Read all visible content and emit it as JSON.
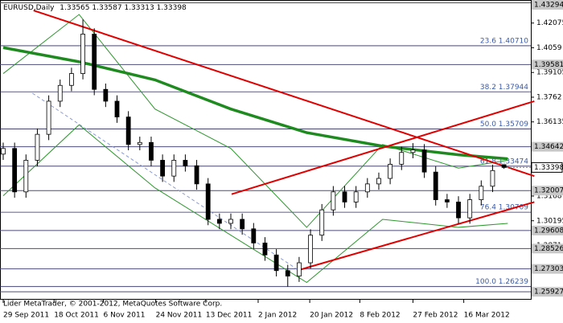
{
  "chart_data": {
    "type": "candlestick",
    "title": "EURUSD,Daily",
    "x": [
      0,
      3,
      6,
      9,
      12,
      15,
      18,
      21,
      24,
      27,
      30,
      33,
      36,
      39,
      42,
      45,
      48,
      51,
      54,
      57,
      60,
      63,
      66,
      69,
      72,
      75,
      78,
      81,
      84,
      87,
      90,
      93,
      96,
      99,
      102,
      105,
      108,
      111,
      114,
      117,
      120,
      123,
      126,
      129,
      132
    ],
    "open": [
      1.342,
      1.3454,
      1.3193,
      1.3383,
      1.3539,
      1.3738,
      1.3833,
      1.3904,
      1.4141,
      1.3809,
      1.3738,
      1.3643,
      1.3478,
      1.349,
      1.3383,
      1.3288,
      1.3383,
      1.335,
      1.3241,
      1.3028,
      1.3004,
      1.3028,
      1.2971,
      1.2886,
      1.2814,
      1.272,
      1.2687,
      1.2767,
      1.2933,
      1.3085,
      1.3193,
      1.3132,
      1.3193,
      1.3241,
      1.3274,
      1.3359,
      1.343,
      1.3445,
      1.3312,
      1.3146,
      1.3132,
      1.3037,
      1.3146,
      1.3227,
      1.33565
    ],
    "high": [
      1.3489,
      1.3489,
      1.3418,
      1.3574,
      1.3773,
      1.3868,
      1.3939,
      1.4229,
      1.4176,
      1.3844,
      1.3773,
      1.3678,
      1.3525,
      1.3525,
      1.3418,
      1.3418,
      1.3418,
      1.3385,
      1.3276,
      1.3063,
      1.3063,
      1.3063,
      1.3006,
      1.2921,
      1.2849,
      1.2755,
      1.2802,
      1.2968,
      1.312,
      1.3228,
      1.3228,
      1.3228,
      1.3276,
      1.3309,
      1.3394,
      1.3465,
      1.3486,
      1.348,
      1.3347,
      1.3181,
      1.3167,
      1.3181,
      1.3262,
      1.3356,
      1.33587
    ],
    "low": [
      1.3385,
      1.3158,
      1.3158,
      1.3348,
      1.3504,
      1.3703,
      1.3798,
      1.3869,
      1.3774,
      1.3703,
      1.3608,
      1.3443,
      1.3443,
      1.3348,
      1.3253,
      1.3253,
      1.3315,
      1.3206,
      1.2993,
      1.2969,
      1.2969,
      1.2936,
      1.2851,
      1.2779,
      1.2685,
      1.2624,
      1.2652,
      1.2732,
      1.2898,
      1.305,
      1.3097,
      1.3097,
      1.3158,
      1.3206,
      1.3239,
      1.3324,
      1.3395,
      1.3277,
      1.3111,
      1.3097,
      1.3002,
      1.3002,
      1.3111,
      1.3192,
      1.33313
    ],
    "close": [
      1.3454,
      1.3193,
      1.3383,
      1.3539,
      1.3738,
      1.3833,
      1.3904,
      1.4141,
      1.3809,
      1.3738,
      1.3643,
      1.3478,
      1.349,
      1.3383,
      1.3288,
      1.3383,
      1.335,
      1.3241,
      1.3028,
      1.3004,
      1.3028,
      1.2971,
      1.2886,
      1.2814,
      1.272,
      1.2687,
      1.2767,
      1.2933,
      1.3085,
      1.3193,
      1.3132,
      1.3193,
      1.3241,
      1.3274,
      1.3359,
      1.343,
      1.3445,
      1.3312,
      1.3146,
      1.3132,
      1.3037,
      1.3146,
      1.3227,
      1.3321,
      1.33398
    ],
    "xlim": [
      0,
      139.5
    ],
    "ylim": [
      1.255,
      1.4346
    ],
    "yticks": [
      1.42075,
      1.4059,
      1.39105,
      1.3762,
      1.36135,
      1.3465,
      1.3168,
      1.30195,
      1.2871,
      1.27225
    ],
    "xticks": [
      {
        "value": 0,
        "label": "29 Sep 2011"
      },
      {
        "value": 13.4,
        "label": "18 Oct 2011"
      },
      {
        "value": 26.4,
        "label": "6 Nov 2011"
      },
      {
        "value": 40.2,
        "label": "24 Nov 2011"
      },
      {
        "value": 53.4,
        "label": "13 Dec 2011"
      },
      {
        "value": 67.2,
        "label": "2 Jan 2012"
      },
      {
        "value": 80.8,
        "label": "20 Jan 2012"
      },
      {
        "value": 94,
        "label": "8 Feb 2012"
      },
      {
        "value": 108,
        "label": "27 Feb 2012"
      },
      {
        "value": 121.4,
        "label": "16 Mar 2012"
      }
    ],
    "moving_average": {
      "color": "#1f8a1f",
      "x": [
        0,
        20,
        40,
        60,
        80,
        100,
        120,
        133
      ],
      "values": [
        1.406,
        1.3975,
        1.3866,
        1.3691,
        1.3549,
        1.3468,
        1.3416,
        1.3392
      ]
    },
    "bands": [
      {
        "color": "#2e962e",
        "x": [
          0,
          20,
          40,
          60,
          80,
          100,
          120,
          133
        ],
        "values": [
          1.3904,
          1.4259,
          1.3691,
          1.3454,
          1.298,
          1.3478,
          1.3336,
          1.3383
        ]
      },
      {
        "color": "#2e962e",
        "x": [
          0,
          20,
          40,
          60,
          80,
          100,
          120,
          133
        ],
        "values": [
          1.317,
          1.3596,
          1.3217,
          1.2933,
          1.2649,
          1.3028,
          1.298,
          1.3004
        ]
      }
    ],
    "trendlines": [
      {
        "color": "#e00000",
        "x": [
          8,
          140
        ],
        "values": [
          1.4283,
          1.3288
        ]
      },
      {
        "color": "#e00000",
        "x": [
          60.2,
          140
        ],
        "values": [
          1.3179,
          1.3738
        ]
      },
      {
        "color": "#e00000",
        "x": [
          77.4,
          140
        ],
        "values": [
          1.272,
          1.3132
        ]
      },
      {
        "color": "#8a9ad0",
        "x": [
          7.7,
          78
        ],
        "values": [
          1.3786,
          1.272
        ],
        "dashed": true
      }
    ],
    "levels": [
      1.43294,
      1.39581,
      1.34642,
      1.32007,
      1.29608,
      1.28526,
      1.27303,
      1.25927
    ],
    "current": 1.33398,
    "fib": [
      {
        "value": 1.4071,
        "label": "23.6 1.40710"
      },
      {
        "value": 1.37944,
        "label": "38.2 1.37944"
      },
      {
        "value": 1.35709,
        "label": "50.0 1.35709"
      },
      {
        "value": 1.33474,
        "label": "61.8 1.33474"
      },
      {
        "value": 1.30709,
        "label": "76.4 1.30709"
      },
      {
        "value": 1.26239,
        "label": "100.0 1.26239"
      }
    ],
    "footer": "Lider MetaTrader, © 2001-2012, MetaQuotes Software Corp."
  }
}
